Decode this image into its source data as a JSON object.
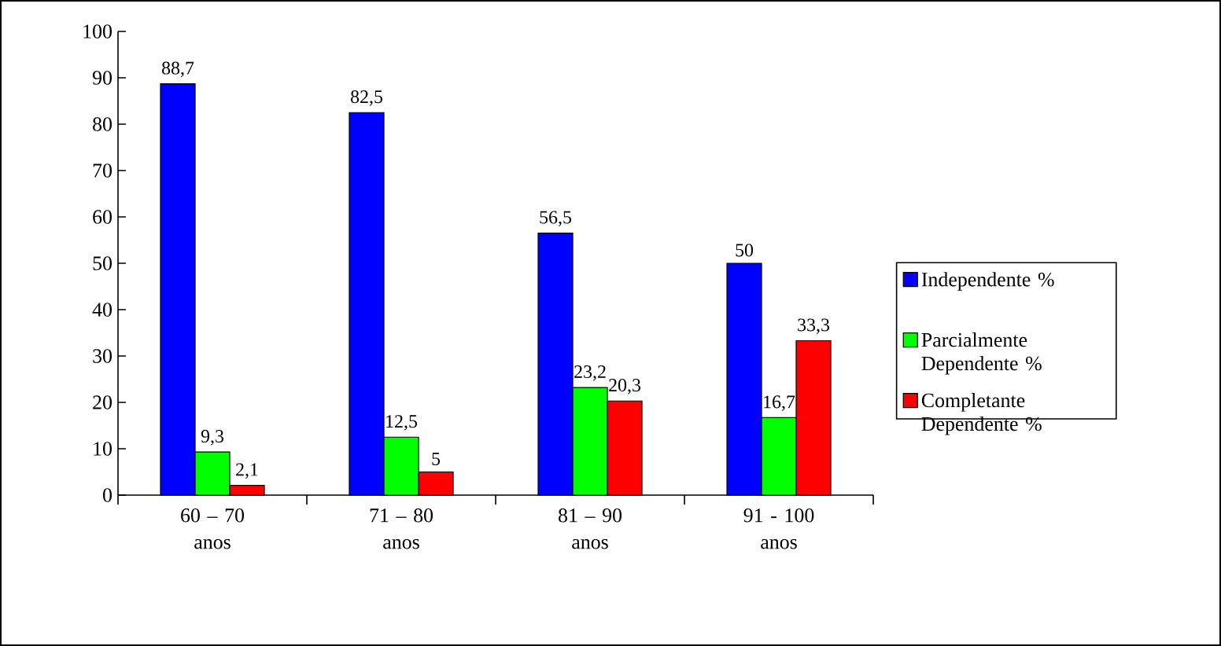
{
  "chart_data": {
    "type": "bar",
    "categories": [
      "60 – 70 anos",
      "71 – 80 anos",
      "81 – 90 anos",
      "91 - 100 anos"
    ],
    "series": [
      {
        "name": "Independente %",
        "color": "#0000ff",
        "values": [
          88.7,
          82.5,
          56.5,
          50
        ],
        "value_labels": [
          "88,7",
          "82,5",
          "56,5",
          "50"
        ]
      },
      {
        "name": "Parcialmente Dependente %",
        "color": "#00ff00",
        "values": [
          9.3,
          12.5,
          23.2,
          16.7
        ],
        "value_labels": [
          "9,3",
          "12,5",
          "23,2",
          "16,7"
        ]
      },
      {
        "name": "Completante Dependente %",
        "color": "#ff0000",
        "values": [
          2.1,
          5,
          20.3,
          33.3
        ],
        "value_labels": [
          "2,1",
          "5",
          "20,3",
          "33,3"
        ]
      }
    ],
    "ylim": [
      0,
      100
    ],
    "yticks": [
      0,
      10,
      20,
      30,
      40,
      50,
      60,
      70,
      80,
      90,
      100
    ],
    "legend": "right"
  }
}
